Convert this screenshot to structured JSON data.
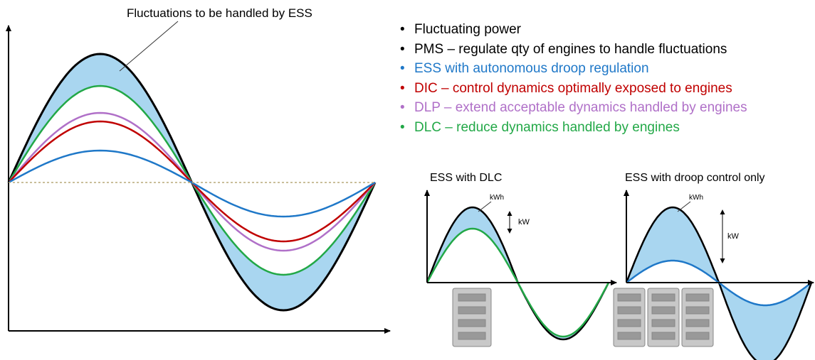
{
  "annotation": "Fluctuations to be handled by ESS",
  "legend": {
    "items": [
      {
        "text": "Fluctuating power",
        "color": "#000000"
      },
      {
        "text": "PMS – regulate qty of engines to handle fluctuations",
        "color": "#000000"
      },
      {
        "text": "ESS with autonomous droop regulation",
        "color": "#1f78c8"
      },
      {
        "text": "DIC – control dynamics optimally exposed to engines",
        "color": "#c00000"
      },
      {
        "text": "DLP – extend acceptable dynamics handled by engines",
        "color": "#b070c8"
      },
      {
        "text": "DLC –  reduce dynamics handled by engines",
        "color": "#22a847"
      }
    ]
  },
  "insets": [
    {
      "title": "ESS with DLC",
      "energy_label": "kWh",
      "power_label": "kW"
    },
    {
      "title": "ESS with droop control only",
      "energy_label": "kWh",
      "power_label": "kW"
    }
  ]
}
